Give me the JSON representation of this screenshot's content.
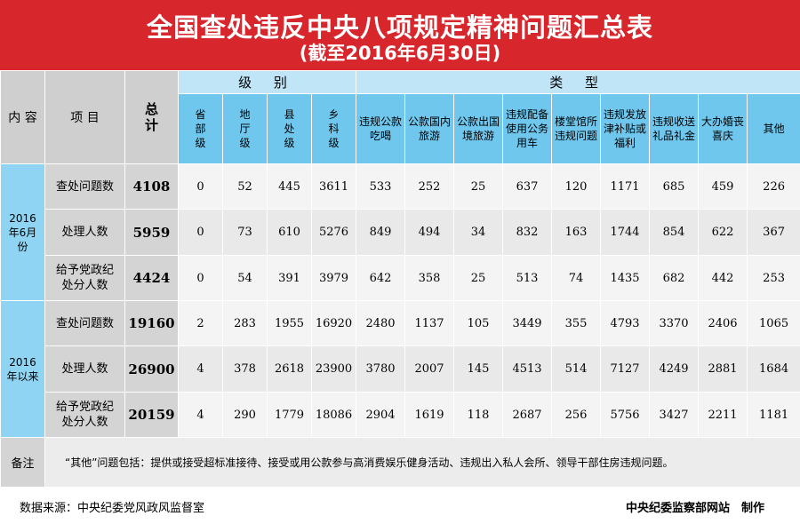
{
  "title": "全国查处违反中央八项规定精神问题汇总表",
  "subtitle": "(截至2016年6月30日)",
  "headers": {
    "content": "内 容",
    "item": "项 目",
    "total": "总计",
    "level_group": "级 别",
    "type_group": "类 型",
    "levels": [
      "省部级",
      "地厅级",
      "县处级",
      "乡科级"
    ],
    "types": [
      "违规公款吃喝",
      "公款国内旅游",
      "公款出国境旅游",
      "违规配备使用公务用车",
      "楼堂馆所违规问题",
      "违规发放津补贴或福利",
      "违规收送礼品礼金",
      "大办婚丧喜庆",
      "其他"
    ]
  },
  "sections": [
    {
      "period": "2016年6月份",
      "rows": [
        {
          "item": "查处问题数",
          "total": "4108",
          "values": [
            "0",
            "52",
            "445",
            "3611",
            "533",
            "252",
            "25",
            "637",
            "120",
            "1171",
            "685",
            "459",
            "226"
          ]
        },
        {
          "item": "处理人数",
          "total": "5959",
          "values": [
            "0",
            "73",
            "610",
            "5276",
            "849",
            "494",
            "34",
            "832",
            "163",
            "1744",
            "854",
            "622",
            "367"
          ]
        },
        {
          "item": "给予党政纪处分人数",
          "total": "4424",
          "values": [
            "0",
            "54",
            "391",
            "3979",
            "642",
            "358",
            "25",
            "513",
            "74",
            "1435",
            "682",
            "442",
            "253"
          ]
        }
      ]
    },
    {
      "period": "2016年以来",
      "rows": [
        {
          "item": "查处问题数",
          "total": "19160",
          "values": [
            "2",
            "283",
            "1955",
            "16920",
            "2480",
            "1137",
            "105",
            "3449",
            "355",
            "4793",
            "3370",
            "2406",
            "1065"
          ]
        },
        {
          "item": "处理人数",
          "total": "26900",
          "values": [
            "4",
            "378",
            "2618",
            "23900",
            "3780",
            "2007",
            "145",
            "4513",
            "514",
            "7127",
            "4249",
            "2881",
            "1684"
          ]
        },
        {
          "item": "给予党政纪处分人数",
          "total": "20159",
          "values": [
            "4",
            "290",
            "1779",
            "18086",
            "2904",
            "1619",
            "118",
            "2687",
            "256",
            "5756",
            "3427",
            "2211",
            "1181"
          ]
        }
      ]
    }
  ],
  "note_label": "备注",
  "note_text": "“其他”问题包括：提供或接受超标准接待、接受或用公款参与高消费娱乐健身活动、违规出入私人会所、领导干部住房违规问题。",
  "source": "数据来源：中央纪委党风政风监督室",
  "producer": "中央纪委监察部网站　制作"
}
